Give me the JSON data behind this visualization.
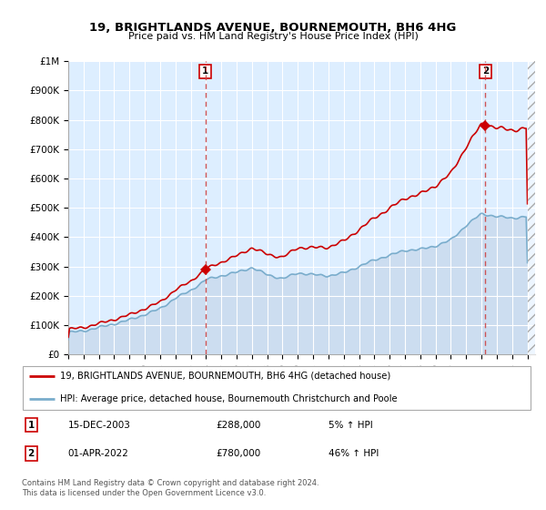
{
  "title": "19, BRIGHTLANDS AVENUE, BOURNEMOUTH, BH6 4HG",
  "subtitle": "Price paid vs. HM Land Registry's House Price Index (HPI)",
  "legend_line1": "19, BRIGHTLANDS AVENUE, BOURNEMOUTH, BH6 4HG (detached house)",
  "legend_line2": "HPI: Average price, detached house, Bournemouth Christchurch and Poole",
  "annotation1_num": "1",
  "annotation1_date": "15-DEC-2003",
  "annotation1_price": "£288,000",
  "annotation1_hpi": "5% ↑ HPI",
  "annotation2_num": "2",
  "annotation2_date": "01-APR-2022",
  "annotation2_price": "£780,000",
  "annotation2_hpi": "46% ↑ HPI",
  "footer": "Contains HM Land Registry data © Crown copyright and database right 2024.\nThis data is licensed under the Open Government Licence v3.0.",
  "sale1_year": 2003.958,
  "sale1_price": 288000,
  "sale2_year": 2022.25,
  "sale2_price": 780000,
  "line_color_red": "#cc0000",
  "line_color_blue": "#7aadcc",
  "fill_color_blue": "#ccddf0",
  "bg_color": "#ddeeff",
  "grid_color": "#ffffff",
  "ylim": [
    0,
    1000000
  ],
  "xlim_start": 1995.0,
  "xlim_end": 2025.5
}
